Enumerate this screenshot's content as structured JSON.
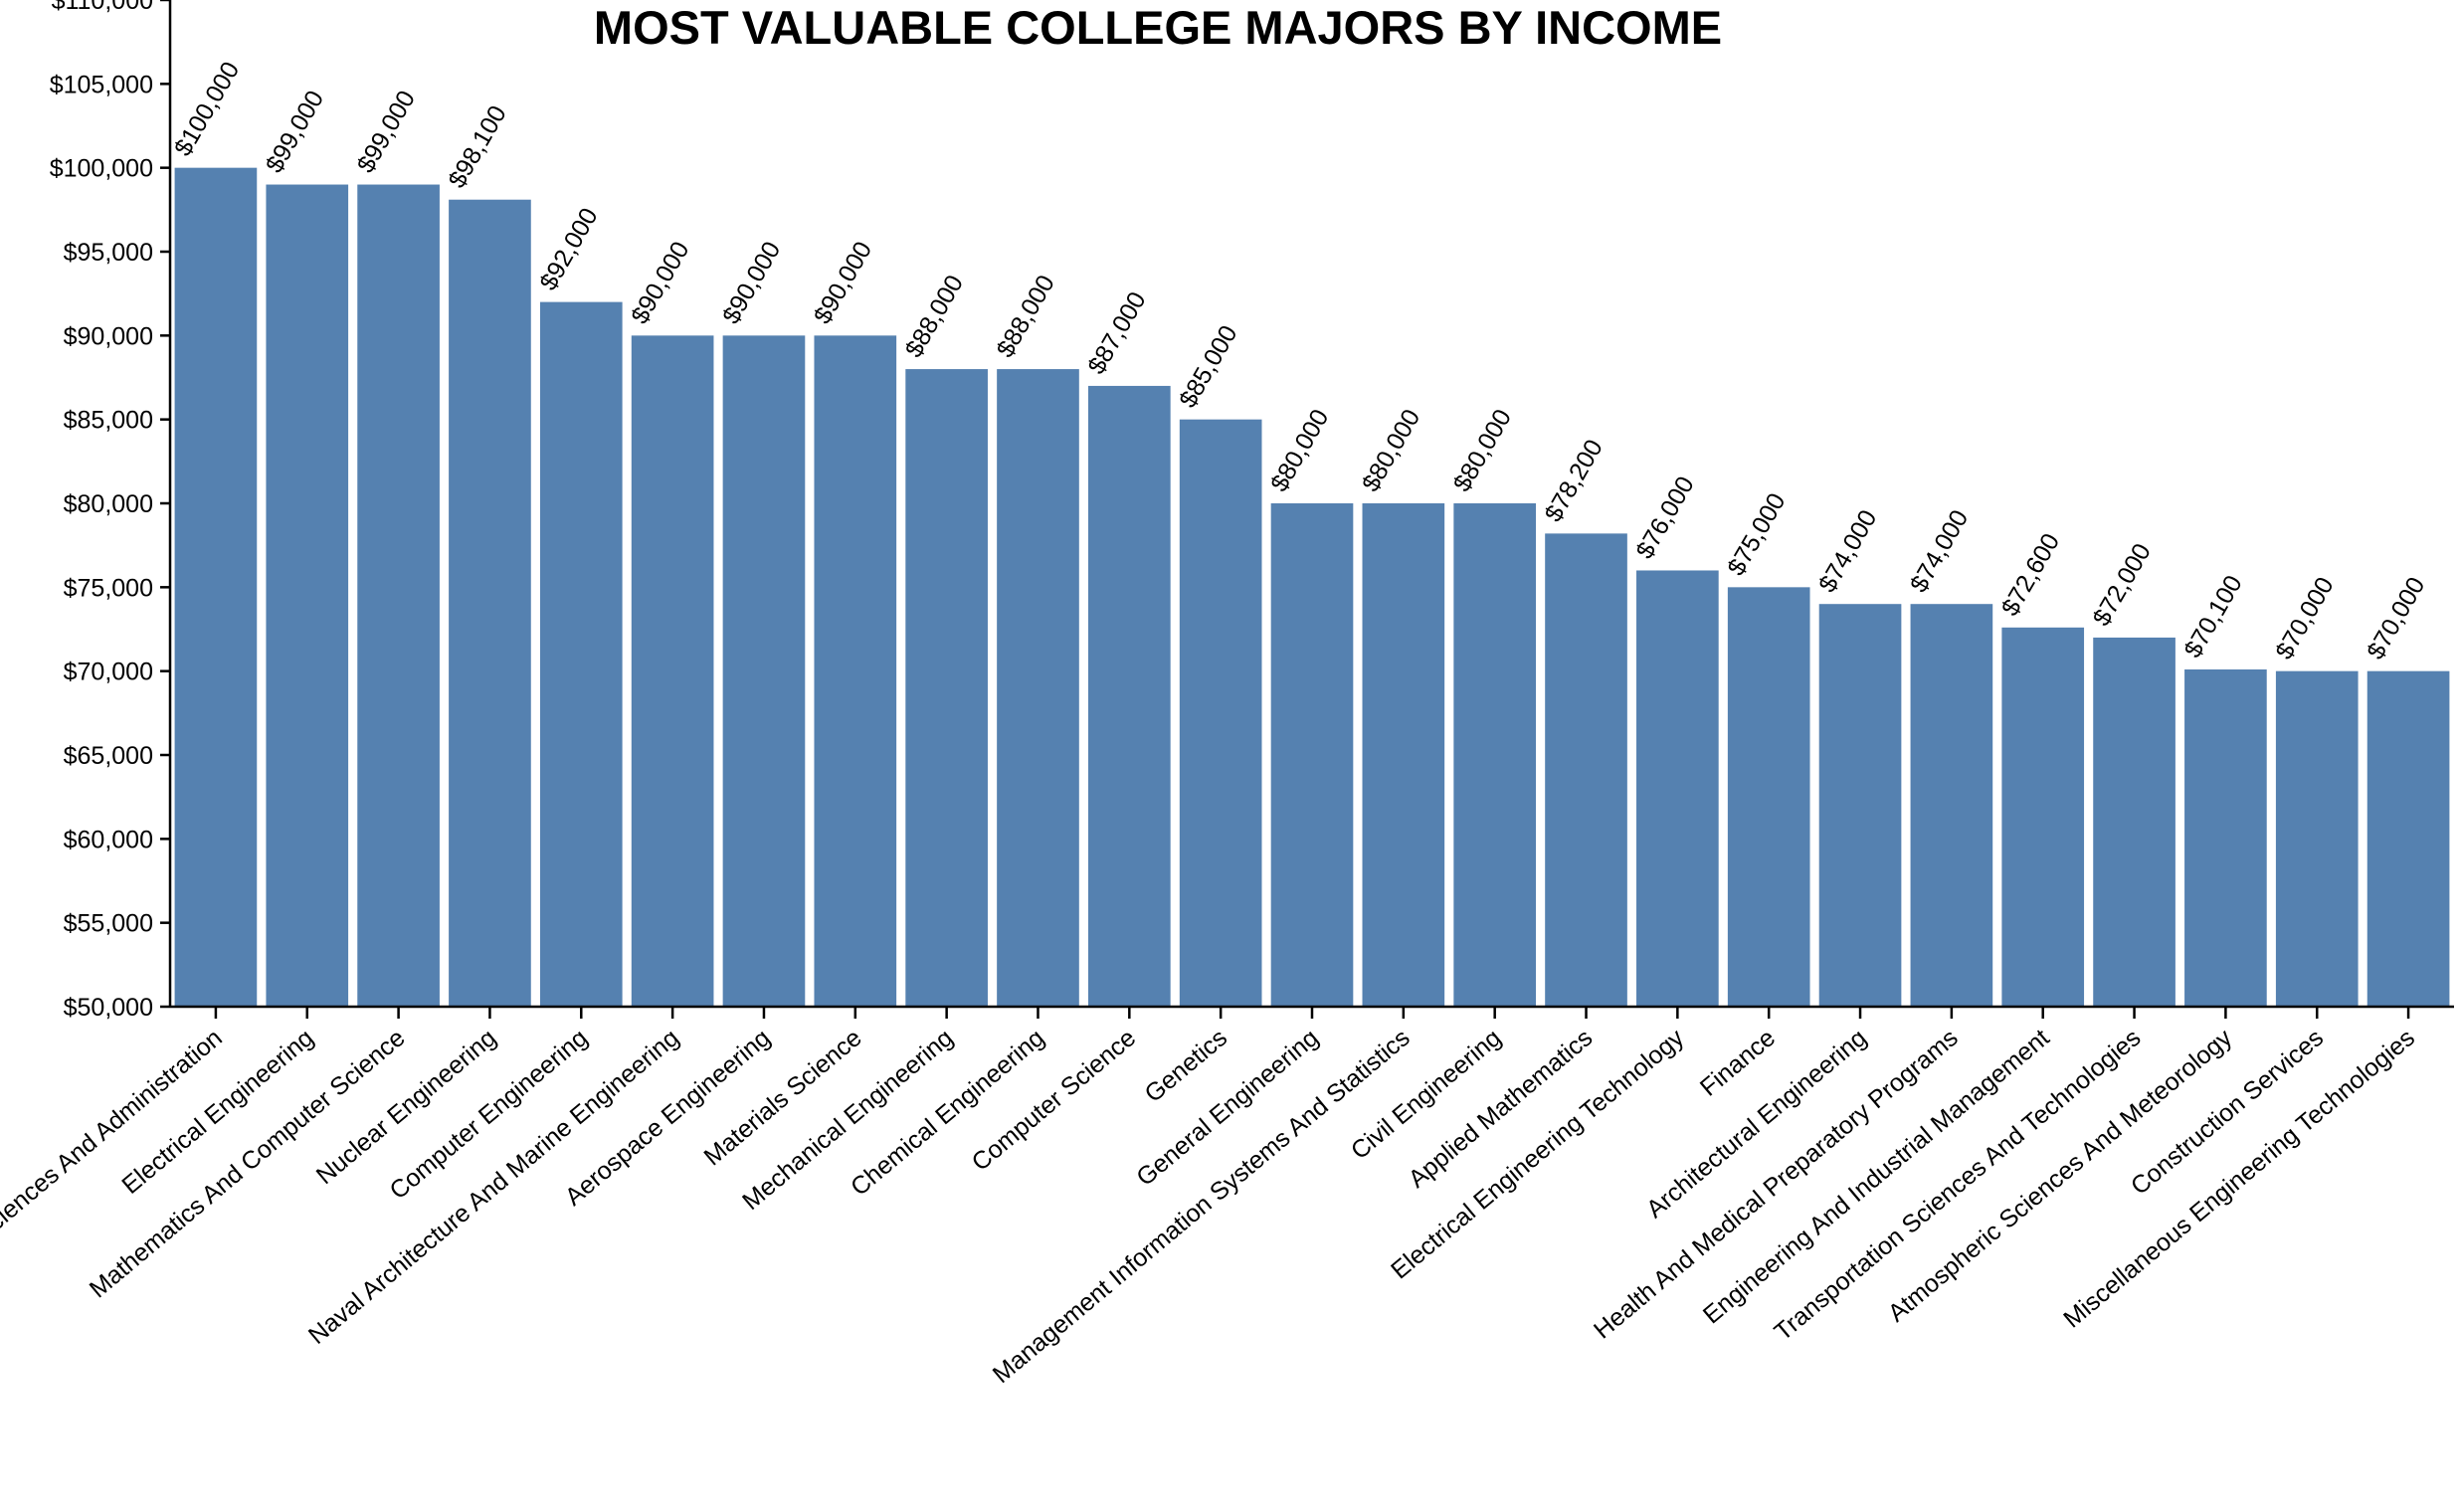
{
  "chart_data": {
    "type": "bar",
    "title": "MOST VALUABLE COLLEGE MAJORS BY INCOME",
    "xlabel": "",
    "ylabel": "",
    "ylim": [
      50000,
      110000
    ],
    "ytick_step": 5000,
    "value_prefix": "$",
    "bar_color": "#5581b0",
    "grid": false,
    "categories": [
      "Actuarial Sciences And Administration",
      "Electrical Engineering",
      "Mathematics And Computer Science",
      "Nuclear Engineering",
      "Computer Engineering",
      "Naval Architecture And Marine Engineering",
      "Aerospace Engineering",
      "Materials Science",
      "Mechanical Engineering",
      "Chemical Engineering",
      "Computer Science",
      "Genetics",
      "General Engineering",
      "Management Information Systems And Statistics",
      "Civil Engineering",
      "Applied Mathematics",
      "Electrical Engineering Technology",
      "Finance",
      "Architectural Engineering",
      "Health And Medical Preparatory Programs",
      "Engineering And Industrial Management",
      "Transportation Sciences And Technologies",
      "Atmospheric Sciences And Meteorology",
      "Construction Services",
      "Miscellaneous Engineering Technologies"
    ],
    "values": [
      100000,
      99000,
      99000,
      98100,
      92000,
      90000,
      90000,
      90000,
      88000,
      88000,
      87000,
      85000,
      80000,
      80000,
      80000,
      78200,
      76000,
      75000,
      74000,
      74000,
      72600,
      72000,
      70100,
      70000,
      70000
    ]
  }
}
